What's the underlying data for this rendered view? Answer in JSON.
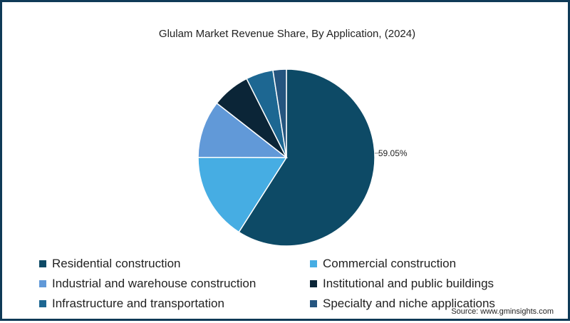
{
  "chart_data": {
    "type": "pie",
    "title": "Glulam Market Revenue Share, By Application, (2024)",
    "categories": [
      "Residential construction",
      "Commercial construction",
      "Industrial and warehouse construction",
      "Institutional and public buildings",
      "Infrastructure and transportation",
      "Specialty and niche applications"
    ],
    "values": [
      59.05,
      16.0,
      10.5,
      7.0,
      5.0,
      2.45
    ],
    "colors": [
      "#0d4a66",
      "#46ade3",
      "#6199d8",
      "#0b2537",
      "#1d6792",
      "#25557f"
    ],
    "data_labels": [
      "59.05%"
    ],
    "legend_position": "bottom"
  },
  "source": "Source: www.gminsights.com"
}
